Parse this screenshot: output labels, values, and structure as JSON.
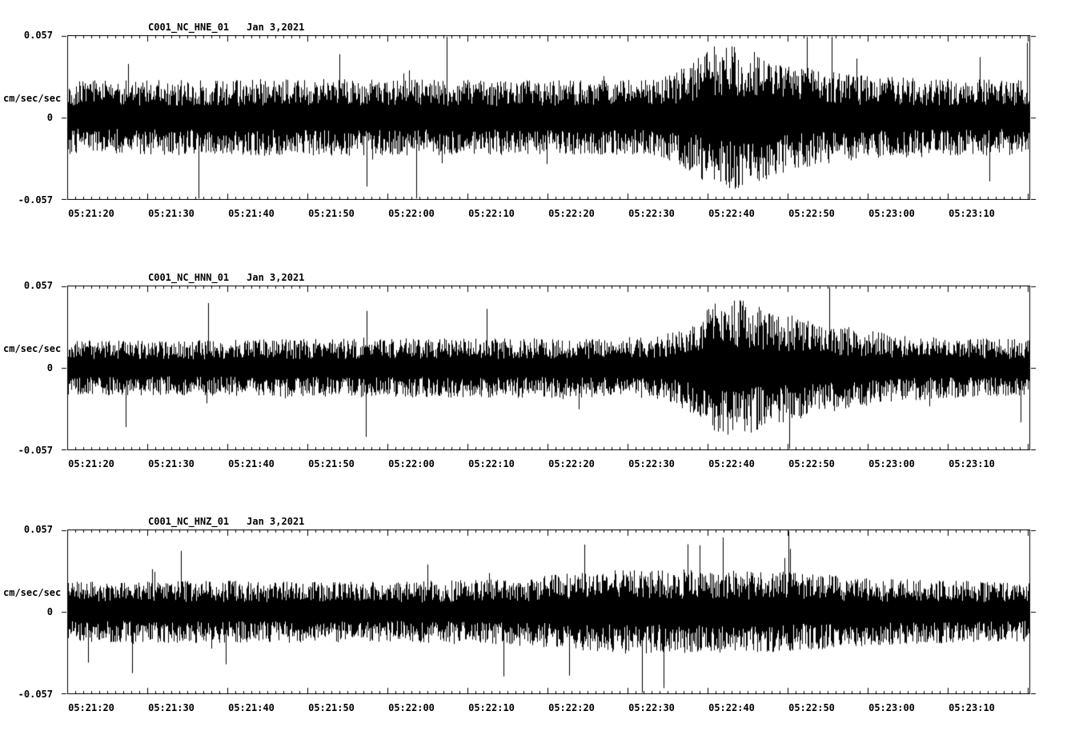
{
  "colors": {
    "trace": "#000000",
    "background": "#ffffff",
    "text": "#000000"
  },
  "x_axis": {
    "labels": [
      "05:21:20",
      "05:21:30",
      "05:21:40",
      "05:21:50",
      "05:22:00",
      "05:22:10",
      "05:22:20",
      "05:22:30",
      "05:22:40",
      "05:22:50",
      "05:23:00",
      "05:23:10"
    ],
    "first_label_offset_s": 3,
    "label_interval_s": 10,
    "duration_s": 120.3,
    "minor_tick_s": 1,
    "major_tick_s": 10
  },
  "chart_data": [
    {
      "type": "line",
      "subtype": "seismogram",
      "station": "C001_NC_HNE_01",
      "date": "Jan 3,2021",
      "title": "C001_NC_HNE_01   Jan 3,2021",
      "ylabel": "cm/sec/sec",
      "ytick_labels": [
        "0.057",
        "0",
        "-0.057"
      ],
      "ylim": [
        -0.057,
        0.057
      ],
      "x_start": "05:21:17",
      "x_end": "05:23:17",
      "seed": 101,
      "spike_prob": 0.015,
      "spike_gain": 1.2,
      "envelope": [
        [
          0,
          0.026
        ],
        [
          30,
          0.027
        ],
        [
          60,
          0.026
        ],
        [
          74,
          0.027
        ],
        [
          78,
          0.038
        ],
        [
          81,
          0.052
        ],
        [
          84,
          0.05
        ],
        [
          88,
          0.042
        ],
        [
          93,
          0.034
        ],
        [
          100,
          0.029
        ],
        [
          110,
          0.027
        ],
        [
          120.3,
          0.026
        ]
      ]
    },
    {
      "type": "line",
      "subtype": "seismogram",
      "station": "C001_NC_HNN_01",
      "date": "Jan 3,2021",
      "title": "C001_NC_HNN_01   Jan 3,2021",
      "ylabel": "cm/sec/sec",
      "ytick_labels": [
        "0.057",
        "0",
        "-0.057"
      ],
      "ylim": [
        -0.057,
        0.057
      ],
      "x_start": "05:21:17",
      "x_end": "05:23:17",
      "seed": 202,
      "spike_prob": 0.012,
      "spike_gain": 1.1,
      "envelope": [
        [
          0,
          0.019
        ],
        [
          25,
          0.02
        ],
        [
          50,
          0.021
        ],
        [
          65,
          0.021
        ],
        [
          74,
          0.022
        ],
        [
          78,
          0.032
        ],
        [
          81,
          0.046
        ],
        [
          84,
          0.048
        ],
        [
          87,
          0.042
        ],
        [
          91,
          0.036
        ],
        [
          96,
          0.03
        ],
        [
          103,
          0.024
        ],
        [
          110,
          0.021
        ],
        [
          120.3,
          0.02
        ]
      ]
    },
    {
      "type": "line",
      "subtype": "seismogram",
      "station": "C001_NC_HNZ_01",
      "date": "Jan 3,2021",
      "title": "C001_NC_HNZ_01   Jan 3,2021",
      "ylabel": "cm/sec/sec",
      "ytick_labels": [
        "0.057",
        "0",
        "-0.057"
      ],
      "ylim": [
        -0.057,
        0.057
      ],
      "x_start": "05:21:17",
      "x_end": "05:23:17",
      "seed": 303,
      "spike_prob": 0.012,
      "spike_gain": 1.0,
      "envelope": [
        [
          0,
          0.021
        ],
        [
          20,
          0.022
        ],
        [
          40,
          0.021
        ],
        [
          55,
          0.023
        ],
        [
          62,
          0.027
        ],
        [
          68,
          0.029
        ],
        [
          75,
          0.03
        ],
        [
          82,
          0.029
        ],
        [
          90,
          0.028
        ],
        [
          100,
          0.024
        ],
        [
          108,
          0.022
        ],
        [
          120.3,
          0.021
        ]
      ]
    }
  ]
}
